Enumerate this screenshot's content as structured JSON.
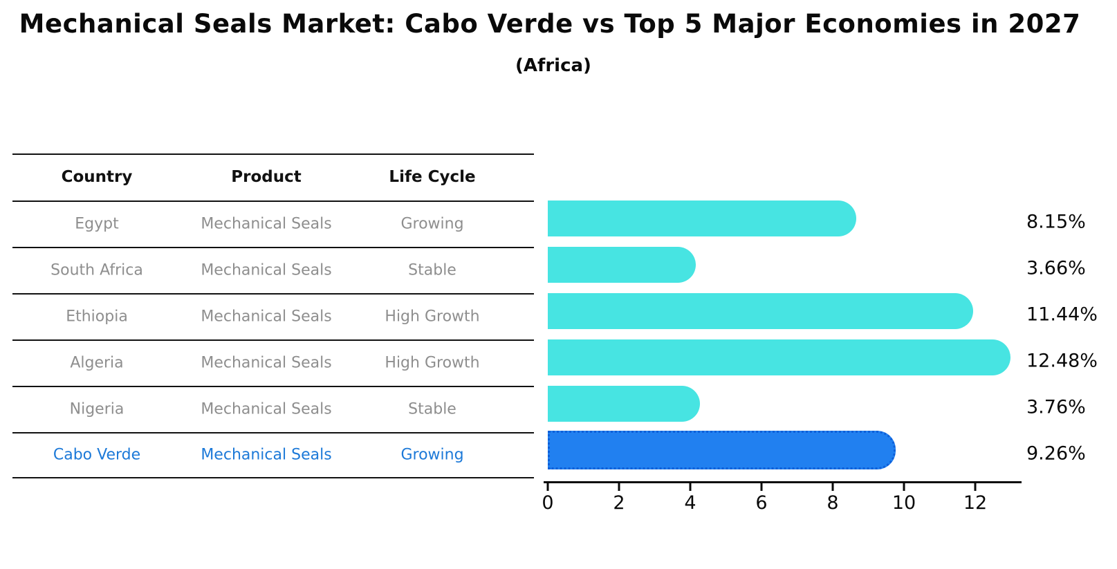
{
  "title": "Mechanical Seals Market: Cabo Verde vs Top 5 Major Economies in 2027",
  "subtitle": "(Africa)",
  "table": {
    "headers": [
      "Country",
      "Product",
      "Life Cycle"
    ],
    "rows": [
      {
        "country": "Egypt",
        "product": "Mechanical Seals",
        "life_cycle": "Growing",
        "highlight": false
      },
      {
        "country": "South Africa",
        "product": "Mechanical Seals",
        "life_cycle": "Stable",
        "highlight": false
      },
      {
        "country": "Ethiopia",
        "product": "Mechanical Seals",
        "life_cycle": "High Growth",
        "highlight": false
      },
      {
        "country": "Algeria",
        "product": "Mechanical Seals",
        "life_cycle": "High Growth",
        "highlight": false
      },
      {
        "country": "Nigeria",
        "product": "Mechanical Seals",
        "life_cycle": "Stable",
        "highlight": false
      },
      {
        "country": "Cabo Verde",
        "product": "Mechanical Seals",
        "life_cycle": "Growing",
        "highlight": true
      }
    ]
  },
  "chart_data": {
    "type": "bar",
    "orientation": "horizontal",
    "title": "Mechanical Seals Market: Cabo Verde vs Top 5 Major Economies in 2027 (Africa)",
    "categories": [
      "Egypt",
      "South Africa",
      "Ethiopia",
      "Algeria",
      "Nigeria",
      "Cabo Verde"
    ],
    "values": [
      8.15,
      3.66,
      11.44,
      12.48,
      3.76,
      9.26
    ],
    "value_labels": [
      "8.15%",
      "3.66%",
      "11.44%",
      "12.48%",
      "3.76%",
      "9.26%"
    ],
    "x_ticks": [
      "0",
      "2",
      "4",
      "6",
      "8",
      "10",
      "12"
    ],
    "xlim": [
      0,
      13.3
    ],
    "grid": false,
    "legend": false,
    "highlight_index": 5
  },
  "colors": {
    "bar": "#47E4E2",
    "highlight_bar": "#2180F0",
    "highlight_border": "#0E5FD8",
    "muted_text": "#8E8E8E",
    "highlight_text": "#1C79D8",
    "line": "#111111"
  }
}
